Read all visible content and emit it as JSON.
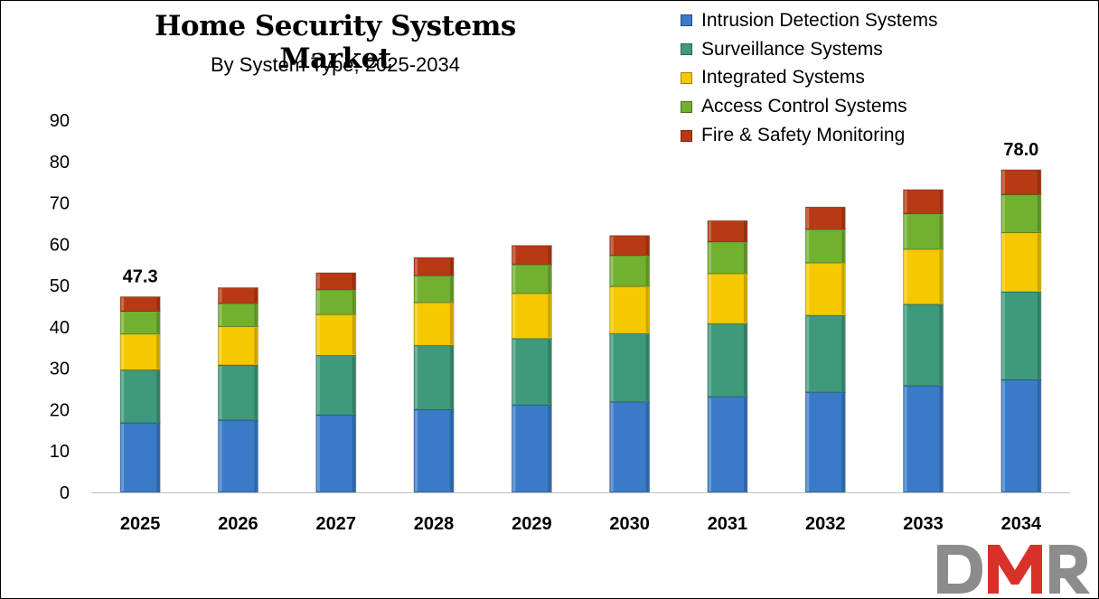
{
  "chart_data": {
    "type": "bar",
    "stacked": true,
    "title": "Home Security Systems Market",
    "subtitle": "By System Type, 2025-2034",
    "categories": [
      "2025",
      "2026",
      "2027",
      "2028",
      "2029",
      "2030",
      "2031",
      "2032",
      "2033",
      "2034"
    ],
    "series": [
      {
        "name": "Intrusion Detection Systems",
        "color": "#3A7BC8",
        "values": [
          16.8,
          17.5,
          18.7,
          20.0,
          21.1,
          21.9,
          23.1,
          24.2,
          25.8,
          27.2
        ]
      },
      {
        "name": "Surveillance Systems",
        "color": "#3E9A7A",
        "values": [
          12.8,
          13.3,
          14.4,
          15.5,
          16.1,
          16.5,
          17.7,
          18.6,
          19.7,
          21.3
        ]
      },
      {
        "name": "Integrated Systems",
        "color": "#F5C800",
        "values": [
          8.7,
          9.3,
          9.9,
          10.4,
          10.9,
          11.4,
          12.1,
          12.7,
          13.3,
          14.3
        ]
      },
      {
        "name": "Access Control Systems",
        "color": "#72B030",
        "values": [
          5.5,
          5.6,
          6.0,
          6.5,
          7.0,
          7.5,
          7.7,
          8.1,
          8.6,
          9.2
        ]
      },
      {
        "name": "Fire & Safety Monitoring",
        "color": "#B83A14",
        "values": [
          3.5,
          3.8,
          4.1,
          4.4,
          4.6,
          4.8,
          5.1,
          5.4,
          5.8,
          6.0
        ]
      }
    ],
    "totals": [
      47.3,
      49.5,
      53.1,
      56.8,
      59.7,
      62.1,
      65.7,
      69.0,
      73.2,
      78.0
    ],
    "data_labels": [
      {
        "category": "2025",
        "text": "47.3"
      },
      {
        "category": "2034",
        "text": "78.0"
      }
    ],
    "yticks": [
      "0",
      "10",
      "20",
      "30",
      "40",
      "50",
      "60",
      "70",
      "80",
      "90"
    ],
    "ylim": [
      0,
      90
    ],
    "legend_position": "top-right",
    "grid": false
  },
  "logo": {
    "text": "DMR"
  }
}
